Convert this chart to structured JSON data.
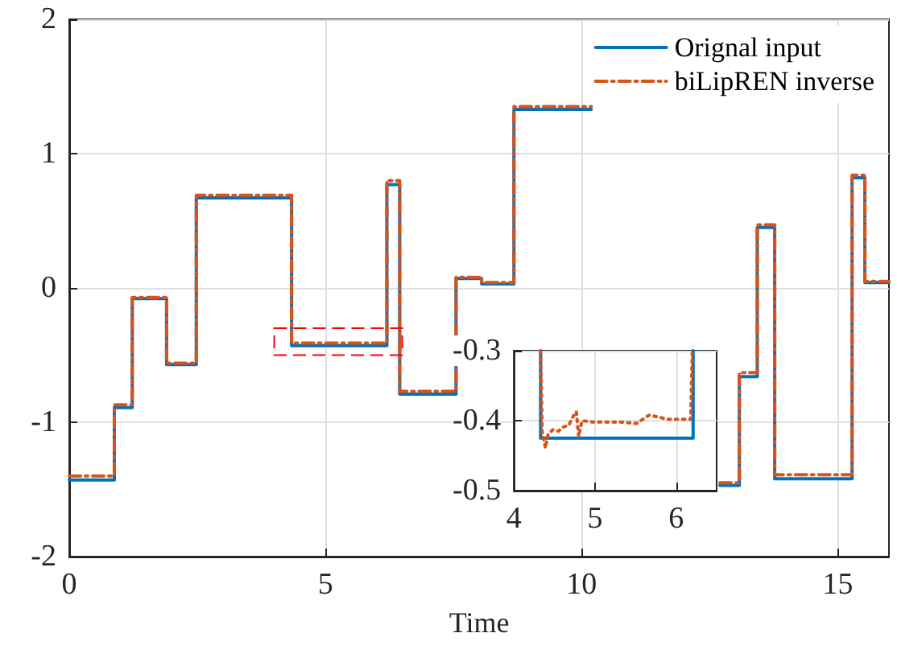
{
  "chart_data": [
    {
      "type": "step",
      "xlabel": "Time",
      "xlim": [
        0,
        16
      ],
      "xticks": [
        0,
        5,
        10,
        15
      ],
      "ylim": [
        -2,
        2
      ],
      "yticks": [
        -2,
        -1,
        0,
        1,
        2
      ],
      "grid": true,
      "legend": "top right",
      "x": [
        0,
        0.88,
        1.23,
        1.9,
        2.48,
        4.34,
        6.2,
        6.45,
        7.55,
        8.05,
        8.68,
        10.19,
        10.2,
        12.7,
        13.08,
        13.43,
        13.77,
        15.28,
        15.53,
        16
      ],
      "series": [
        {
          "name": "Orignal input",
          "color": "#0072bd",
          "line_style": "solid",
          "values": [
            -1.43,
            -0.89,
            -0.08,
            -0.57,
            0.67,
            -0.43,
            0.77,
            -0.79,
            0.07,
            0.03,
            1.33,
            1.33,
            null,
            -1.47,
            -0.66,
            0.45,
            -1.42,
            0.82,
            0.04,
            0.04
          ]
        },
        {
          "name": "biLipREN inverse",
          "color": "#d95319",
          "line_style": "dashed",
          "values": [
            -1.4,
            -0.87,
            -0.07,
            -0.56,
            0.69,
            -0.41,
            0.8,
            -0.77,
            0.08,
            0.04,
            1.35,
            1.35,
            null,
            -1.45,
            -0.63,
            0.47,
            -1.39,
            0.84,
            0.05,
            0.05
          ]
        }
      ]
    },
    {
      "type": "line",
      "xlim": [
        4,
        6.5
      ],
      "xticks": [
        4,
        5,
        6
      ],
      "ylim": [
        -0.5,
        -0.3
      ],
      "yticks": [
        -0.5,
        -0.4,
        -0.3
      ],
      "grid": true,
      "series": [
        {
          "color": "#0072bd",
          "line_style": "solid",
          "x": [
            4.33,
            4.33,
            6.21,
            6.21
          ],
          "values": [
            -0.3,
            -0.425,
            -0.425,
            -0.3
          ]
        },
        {
          "color": "#d95319",
          "line_style": "dotted",
          "x": [
            4.33,
            4.35,
            4.39,
            4.42,
            4.48,
            4.55,
            4.61,
            4.68,
            4.72,
            4.77,
            4.8,
            4.84,
            4.97,
            5.13,
            5.32,
            5.51,
            5.67,
            5.9,
            6.18,
            6.2
          ],
          "values": [
            -0.3,
            -0.416,
            -0.439,
            -0.42,
            -0.413,
            -0.415,
            -0.409,
            -0.406,
            -0.396,
            -0.387,
            -0.423,
            -0.4,
            -0.402,
            -0.402,
            -0.402,
            -0.404,
            -0.392,
            -0.398,
            -0.398,
            -0.3
          ]
        }
      ]
    }
  ]
}
